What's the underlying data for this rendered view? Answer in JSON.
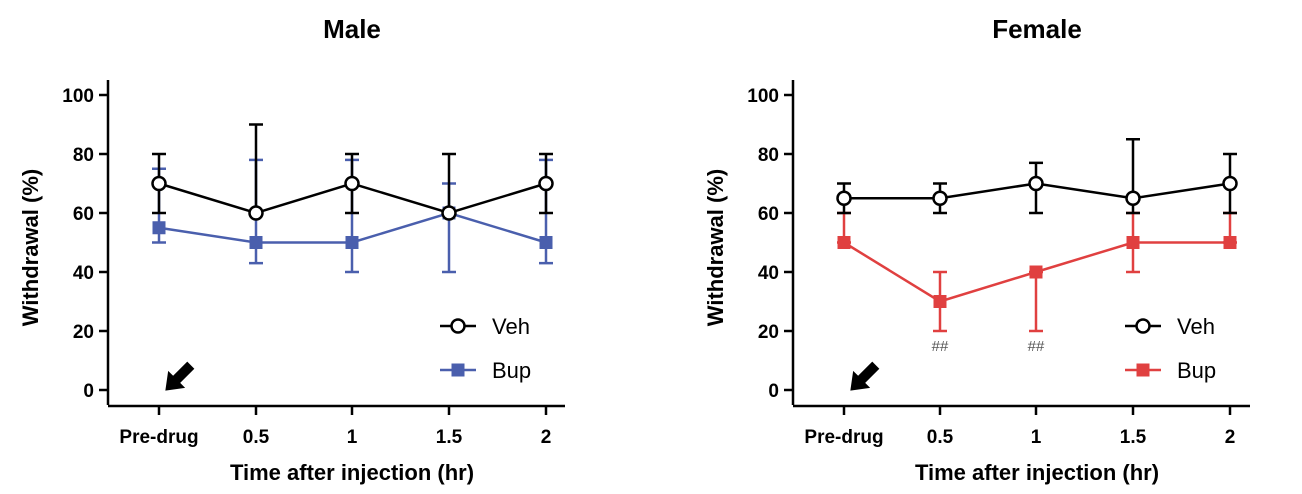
{
  "chart_data": [
    {
      "type": "line",
      "title": "Male",
      "xlabel": "Time after injection (hr)",
      "ylabel": "Withdrawal (%)",
      "categories": [
        "Pre-drug",
        "0.5",
        "1",
        "1.5",
        "2"
      ],
      "yticks": [
        "0",
        "20",
        "40",
        "60",
        "80",
        "100"
      ],
      "ylim": [
        0,
        100
      ],
      "legend_position": "bottom-right",
      "arrow_at": "Pre-drug",
      "series": [
        {
          "name": "Veh",
          "marker": "open-circle",
          "color": "#000000",
          "values": [
            70,
            60,
            70,
            60,
            70
          ],
          "err_low": [
            60,
            60,
            60,
            60,
            60
          ],
          "err_high": [
            80,
            90,
            80,
            80,
            80
          ]
        },
        {
          "name": "Bup",
          "marker": "filled-square",
          "color": "#4a5fad",
          "values": [
            55,
            50,
            50,
            60,
            50
          ],
          "err_low": [
            50,
            43,
            40,
            40,
            43
          ],
          "err_high": [
            75,
            78,
            78,
            70,
            78
          ]
        }
      ],
      "annotations": []
    },
    {
      "type": "line",
      "title": "Female",
      "xlabel": "Time after injection (hr)",
      "ylabel": "Withdrawal (%)",
      "categories": [
        "Pre-drug",
        "0.5",
        "1",
        "1.5",
        "2"
      ],
      "yticks": [
        "0",
        "20",
        "40",
        "60",
        "80",
        "100"
      ],
      "ylim": [
        0,
        100
      ],
      "legend_position": "bottom-right",
      "arrow_at": "Pre-drug",
      "series": [
        {
          "name": "Veh",
          "marker": "open-circle",
          "color": "#000000",
          "values": [
            65,
            65,
            70,
            65,
            70
          ],
          "err_low": [
            60,
            60,
            60,
            60,
            60
          ],
          "err_high": [
            70,
            70,
            77,
            85,
            80
          ]
        },
        {
          "name": "Bup",
          "marker": "filled-square",
          "color": "#e04040",
          "values": [
            50,
            30,
            40,
            50,
            50
          ],
          "err_low": [
            50,
            20,
            20,
            40,
            50
          ],
          "err_high": [
            60,
            40,
            40,
            60,
            60
          ]
        }
      ],
      "annotations": [
        {
          "text": "##",
          "category": "0.5",
          "y": 15
        },
        {
          "text": "##",
          "category": "1",
          "y": 15
        }
      ]
    }
  ]
}
